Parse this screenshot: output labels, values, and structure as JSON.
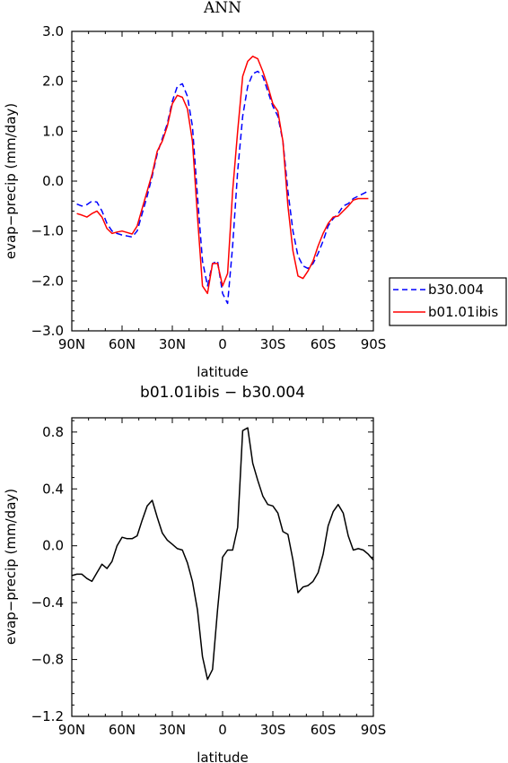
{
  "chart_data": [
    {
      "type": "line",
      "title": "ANN",
      "xlabel": "latitude",
      "ylabel": "evap−precip (mm/day)",
      "xlim": [
        90,
        -90
      ],
      "ylim": [
        -3.0,
        3.0
      ],
      "x_ticks": [
        90,
        60,
        30,
        0,
        -30,
        -60,
        -90
      ],
      "x_tick_labels": [
        "90N",
        "60N",
        "30N",
        "0",
        "30S",
        "60S",
        "90S"
      ],
      "y_ticks": [
        -3.0,
        -2.0,
        -1.0,
        0.0,
        1.0,
        2.0,
        3.0
      ],
      "y_tick_labels": [
        "−3.0",
        "−2.0",
        "−1.0",
        "0.0",
        "1.0",
        "2.0",
        "3.0"
      ],
      "legend_position": "right-bottom",
      "x": [
        87,
        84,
        81,
        78,
        75,
        72,
        69,
        66,
        63,
        60,
        57,
        54,
        51,
        48,
        45,
        42,
        39,
        36,
        33,
        30,
        27,
        24,
        21,
        18,
        15,
        12,
        9,
        6,
        3,
        0,
        -3,
        -6,
        -9,
        -12,
        -15,
        -18,
        -21,
        -24,
        -27,
        -30,
        -33,
        -36,
        -39,
        -42,
        -45,
        -48,
        -51,
        -54,
        -57,
        -60,
        -63,
        -66,
        -69,
        -72,
        -75,
        -78,
        -81,
        -84,
        -87
      ],
      "series": [
        {
          "name": "b30.004",
          "color": "#0000ff",
          "dash": "dashed",
          "values": [
            -0.46,
            -0.5,
            -0.47,
            -0.4,
            -0.42,
            -0.6,
            -0.85,
            -1.0,
            -1.05,
            -1.08,
            -1.1,
            -1.12,
            -1.0,
            -0.65,
            -0.3,
            0.1,
            0.55,
            0.85,
            1.15,
            1.6,
            1.9,
            1.95,
            1.7,
            1.1,
            -0.3,
            -1.6,
            -2.1,
            -1.65,
            -1.6,
            -2.25,
            -2.45,
            -1.3,
            0.2,
            1.3,
            1.9,
            2.15,
            2.2,
            2.1,
            1.8,
            1.5,
            1.3,
            0.8,
            -0.2,
            -1.0,
            -1.5,
            -1.7,
            -1.75,
            -1.65,
            -1.45,
            -1.2,
            -0.9,
            -0.75,
            -0.65,
            -0.5,
            -0.45,
            -0.35,
            -0.3,
            -0.25,
            -0.2
          ]
        },
        {
          "name": "b01.01ibis",
          "color": "#ff0000",
          "dash": "solid",
          "values": [
            -0.65,
            -0.68,
            -0.72,
            -0.65,
            -0.6,
            -0.72,
            -0.95,
            -1.05,
            -1.02,
            -1.0,
            -1.03,
            -1.06,
            -0.9,
            -0.55,
            -0.2,
            0.15,
            0.6,
            0.8,
            1.1,
            1.55,
            1.72,
            1.68,
            1.45,
            0.8,
            -0.7,
            -2.1,
            -2.25,
            -1.65,
            -1.65,
            -2.1,
            -1.85,
            -0.2,
            1.0,
            2.1,
            2.4,
            2.5,
            2.45,
            2.2,
            1.9,
            1.55,
            1.4,
            0.8,
            -0.5,
            -1.4,
            -1.9,
            -1.95,
            -1.8,
            -1.6,
            -1.3,
            -1.05,
            -0.85,
            -0.72,
            -0.7,
            -0.6,
            -0.5,
            -0.38,
            -0.35,
            -0.35,
            -0.35
          ]
        }
      ]
    },
    {
      "type": "line",
      "title": "b01.01ibis − b30.004",
      "xlabel": "latitude",
      "ylabel": "evap−precip (mm/day)",
      "xlim": [
        90,
        -90
      ],
      "ylim": [
        -1.2,
        0.9
      ],
      "x_ticks": [
        90,
        60,
        30,
        0,
        -30,
        -60,
        -90
      ],
      "x_tick_labels": [
        "90N",
        "60N",
        "30N",
        "0",
        "30S",
        "60S",
        "90S"
      ],
      "y_ticks": [
        -1.2,
        -0.8,
        -0.4,
        0.0,
        0.4,
        0.8
      ],
      "y_tick_labels": [
        "−1.2",
        "−0.8",
        "−0.4",
        "0.0",
        "0.4",
        "0.8"
      ],
      "x": [
        90,
        87,
        84,
        81,
        78,
        75,
        72,
        69,
        66,
        63,
        60,
        57,
        54,
        51,
        48,
        45,
        42,
        39,
        36,
        33,
        30,
        27,
        24,
        21,
        18,
        15,
        12,
        9,
        6,
        3,
        0,
        -3,
        -6,
        -9,
        -12,
        -15,
        -18,
        -21,
        -24,
        -27,
        -30,
        -33,
        -36,
        -39,
        -42,
        -45,
        -48,
        -51,
        -54,
        -57,
        -60,
        -63,
        -66,
        -69,
        -72,
        -75,
        -78,
        -81,
        -84,
        -87,
        -90
      ],
      "series": [
        {
          "color": "#000000",
          "dash": "solid",
          "values": [
            -0.21,
            -0.2,
            -0.2,
            -0.23,
            -0.25,
            -0.19,
            -0.13,
            -0.16,
            -0.11,
            0.0,
            0.06,
            0.05,
            0.05,
            0.07,
            0.18,
            0.28,
            0.32,
            0.2,
            0.09,
            0.04,
            0.01,
            -0.02,
            -0.03,
            -0.12,
            -0.25,
            -0.45,
            -0.78,
            -0.94,
            -0.87,
            -0.45,
            -0.08,
            -0.03,
            -0.03,
            0.13,
            0.81,
            0.83,
            0.58,
            0.46,
            0.35,
            0.29,
            0.28,
            0.23,
            0.1,
            0.08,
            -0.1,
            -0.33,
            -0.29,
            -0.28,
            -0.25,
            -0.19,
            -0.06,
            0.14,
            0.24,
            0.29,
            0.23,
            0.07,
            -0.03,
            -0.02,
            -0.03,
            -0.06,
            -0.1
          ]
        }
      ]
    }
  ]
}
